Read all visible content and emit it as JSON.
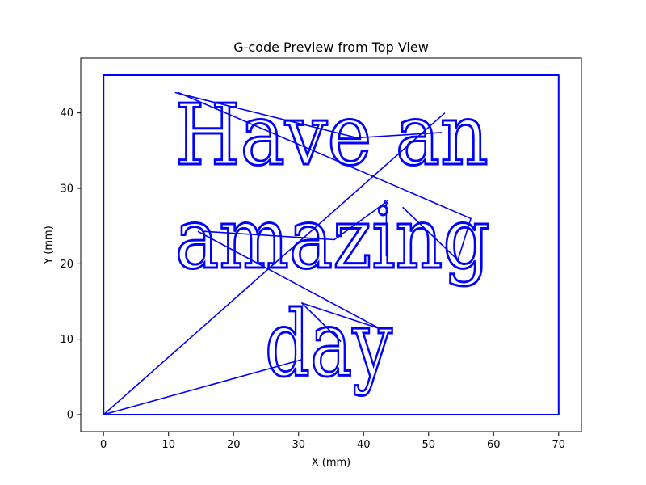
{
  "chart_data": {
    "type": "line",
    "title": "G-code Preview from Top View",
    "xlabel": "X (mm)",
    "ylabel": "Y (mm)",
    "xlim": [
      -3.5,
      73.5
    ],
    "ylim": [
      -2.25,
      47.25
    ],
    "xticks": [
      0,
      10,
      20,
      30,
      40,
      50,
      60,
      70
    ],
    "yticks": [
      0,
      10,
      20,
      30,
      40
    ],
    "grid": false,
    "line_color": "#0000ff",
    "series": [
      {
        "values": [
          {
            "x": 0,
            "y": 0
          },
          {
            "x": 70,
            "y": 0
          },
          {
            "x": 70,
            "y": 45
          },
          {
            "x": 0,
            "y": 45
          },
          {
            "x": 0,
            "y": 0
          }
        ]
      },
      {
        "values": [
          {
            "x": 11,
            "y": 42.7
          },
          {
            "x": 39,
            "y": 36.7
          },
          {
            "x": 52,
            "y": 37.4
          }
        ]
      },
      {
        "values": [
          {
            "x": 11.5,
            "y": 42.7
          },
          {
            "x": 56.5,
            "y": 26
          },
          {
            "x": 54.5,
            "y": 20.5
          },
          {
            "x": 46,
            "y": 27.5
          }
        ]
      },
      {
        "values": [
          {
            "x": 0,
            "y": 0
          },
          {
            "x": 52.5,
            "y": 40
          }
        ]
      },
      {
        "values": [
          {
            "x": 15.5,
            "y": 24.3
          },
          {
            "x": 35.5,
            "y": 23.2
          },
          {
            "x": 43.5,
            "y": 28.2
          },
          {
            "x": 43.5,
            "y": 21
          }
        ]
      },
      {
        "values": [
          {
            "x": 14.5,
            "y": 24.3
          },
          {
            "x": 42.5,
            "y": 11.4
          },
          {
            "x": 30.5,
            "y": 14.8
          },
          {
            "x": 36.5,
            "y": 9.7
          }
        ]
      },
      {
        "values": [
          {
            "x": 0,
            "y": 0
          },
          {
            "x": 30.5,
            "y": 7.3
          }
        ]
      }
    ],
    "text_marks": [
      {
        "text": "Have an",
        "x": 11,
        "y": 33.2
      },
      {
        "text": "amazing",
        "x": 11,
        "y": 19.5
      },
      {
        "text": "day",
        "x": 24.8,
        "y": 5.2
      }
    ]
  }
}
